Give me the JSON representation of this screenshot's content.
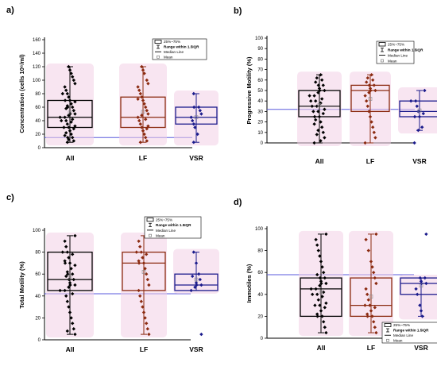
{
  "legend": {
    "box": "25%~75%",
    "range": "Range within 1.5IQR",
    "median": "Median Line",
    "mean": "Mean"
  },
  "colors": {
    "All": "#000000",
    "LF": "#8b2a10",
    "VSR": "#1b1b8c",
    "ref_line": "#5a5adc",
    "halo": "#f3cfe6"
  },
  "chart_data": [
    {
      "panel": "a)",
      "type": "box",
      "ylabel": "Concentration (cells 10⁶/ml)",
      "ylim": [
        0,
        160
      ],
      "yticks": [
        0,
        20,
        40,
        60,
        80,
        100,
        120,
        140,
        160
      ],
      "categories": [
        "All",
        "LF",
        "VSR"
      ],
      "reference_line": 15,
      "boxes": [
        {
          "q1": 30,
          "median": 45,
          "q3": 70,
          "whisker_low": 8,
          "whisker_high": 120,
          "mean": 52,
          "points": [
            8,
            10,
            12,
            15,
            15,
            18,
            20,
            22,
            25,
            28,
            30,
            30,
            32,
            35,
            38,
            40,
            40,
            42,
            45,
            45,
            48,
            50,
            50,
            55,
            58,
            60,
            60,
            62,
            65,
            68,
            70,
            70,
            75,
            80,
            80,
            85,
            90,
            95,
            100,
            105,
            110,
            115,
            120
          ]
        },
        {
          "q1": 30,
          "median": 45,
          "q3": 75,
          "whisker_low": 8,
          "whisker_high": 120,
          "mean": 53,
          "points": [
            8,
            10,
            15,
            20,
            25,
            28,
            30,
            32,
            35,
            40,
            42,
            45,
            48,
            50,
            55,
            60,
            65,
            70,
            72,
            75,
            80,
            85,
            90,
            95,
            100,
            110,
            115,
            120
          ]
        },
        {
          "q1": 35,
          "median": 45,
          "q3": 60,
          "whisker_low": 8,
          "whisker_high": 80,
          "mean": 45,
          "points": [
            8,
            20,
            30,
            35,
            40,
            45,
            50,
            55,
            60,
            60,
            80
          ]
        }
      ]
    },
    {
      "panel": "b)",
      "type": "box",
      "ylabel": "Progressive Motility (%)",
      "ylim": [
        0,
        100
      ],
      "yticks": [
        0,
        10,
        20,
        30,
        40,
        50,
        60,
        70,
        80,
        90,
        100
      ],
      "categories": [
        "All",
        "LF",
        "VSR"
      ],
      "reference_line": 32,
      "boxes": [
        {
          "q1": 25,
          "median": 35,
          "q3": 50,
          "whisker_low": 0,
          "whisker_high": 65,
          "mean": 36,
          "points": [
            0,
            2,
            5,
            8,
            10,
            12,
            15,
            18,
            20,
            22,
            25,
            25,
            28,
            30,
            30,
            32,
            35,
            35,
            38,
            40,
            40,
            42,
            45,
            45,
            48,
            50,
            50,
            52,
            55,
            55,
            58,
            60,
            62,
            65
          ]
        },
        {
          "q1": 30,
          "median": 50,
          "q3": 55,
          "whisker_low": 0,
          "whisker_high": 65,
          "mean": 42,
          "points": [
            0,
            5,
            10,
            15,
            20,
            25,
            30,
            35,
            40,
            45,
            48,
            50,
            50,
            52,
            55,
            55,
            58,
            60,
            62,
            65
          ]
        },
        {
          "q1": 25,
          "median": 30,
          "q3": 40,
          "whisker_low": 12,
          "whisker_high": 50,
          "mean": 31,
          "points": [
            0,
            12,
            15,
            25,
            25,
            28,
            30,
            35,
            40,
            40,
            50
          ]
        }
      ]
    },
    {
      "panel": "c)",
      "type": "box",
      "ylabel": "Total Motility (%)",
      "ylim": [
        0,
        100
      ],
      "yticks": [
        0,
        20,
        40,
        60,
        80,
        100
      ],
      "categories": [
        "All",
        "LF",
        "VSR"
      ],
      "reference_line": 42,
      "boxes": [
        {
          "q1": 45,
          "median": 55,
          "q3": 80,
          "whisker_low": 5,
          "whisker_high": 95,
          "mean": 57,
          "points": [
            5,
            8,
            10,
            15,
            20,
            25,
            30,
            35,
            40,
            42,
            45,
            45,
            48,
            50,
            50,
            52,
            55,
            55,
            58,
            60,
            60,
            62,
            65,
            68,
            70,
            70,
            72,
            75,
            78,
            80,
            80,
            85,
            90,
            95
          ]
        },
        {
          "q1": 45,
          "median": 70,
          "q3": 80,
          "whisker_low": 5,
          "whisker_high": 95,
          "mean": 62,
          "points": [
            5,
            10,
            15,
            20,
            25,
            30,
            35,
            40,
            45,
            50,
            55,
            60,
            65,
            70,
            70,
            72,
            75,
            78,
            80,
            80,
            85,
            90,
            95
          ]
        },
        {
          "q1": 45,
          "median": 50,
          "q3": 60,
          "whisker_low": 45,
          "whisker_high": 80,
          "mean": 55,
          "points": [
            5,
            45,
            48,
            50,
            50,
            52,
            55,
            58,
            60,
            70,
            80
          ]
        }
      ]
    },
    {
      "panel": "d)",
      "type": "box",
      "ylabel": "Immotiles (%)",
      "ylim": [
        0,
        100
      ],
      "yticks": [
        0,
        20,
        40,
        60,
        80,
        100
      ],
      "categories": [
        "All",
        "LF",
        "VSR"
      ],
      "reference_line": 58,
      "boxes": [
        {
          "q1": 20,
          "median": 45,
          "q3": 55,
          "whisker_low": 5,
          "whisker_high": 95,
          "mean": 42,
          "points": [
            5,
            10,
            15,
            20,
            20,
            22,
            25,
            28,
            30,
            30,
            32,
            35,
            38,
            40,
            40,
            42,
            45,
            45,
            48,
            50,
            50,
            52,
            55,
            55,
            58,
            60,
            65,
            70,
            75,
            80,
            85,
            90,
            95
          ]
        },
        {
          "q1": 20,
          "median": 30,
          "q3": 55,
          "whisker_low": 5,
          "whisker_high": 95,
          "mean": 38,
          "points": [
            5,
            10,
            15,
            20,
            20,
            22,
            25,
            28,
            30,
            30,
            35,
            40,
            45,
            50,
            55,
            60,
            65,
            70,
            80,
            90,
            95
          ]
        },
        {
          "q1": 40,
          "median": 50,
          "q3": 55,
          "whisker_low": 20,
          "whisker_high": 55,
          "mean": 48,
          "points": [
            20,
            25,
            30,
            40,
            45,
            50,
            50,
            52,
            55,
            55,
            95
          ]
        }
      ]
    }
  ]
}
